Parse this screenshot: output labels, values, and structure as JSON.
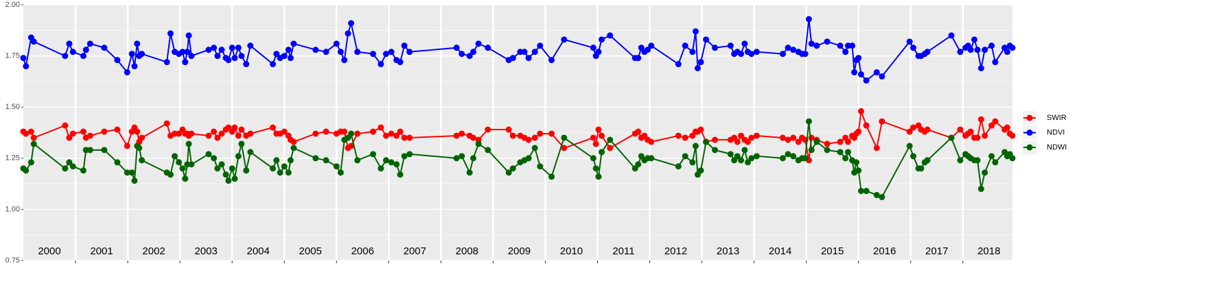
{
  "chart_data": {
    "type": "line",
    "x": [
      2000,
      2000.05,
      2000.15,
      2000.2,
      2000.8,
      2000.88,
      2000.95,
      2001.15,
      2001.2,
      2001.28,
      2001.55,
      2001.8,
      2001.99,
      2002.08,
      2002.13,
      2002.18,
      2002.22,
      2002.27,
      2002.75,
      2002.82,
      2002.9,
      2002.98,
      2003.05,
      2003.1,
      2003.14,
      2003.17,
      2003.22,
      2003.55,
      2003.65,
      2003.72,
      2003.8,
      2003.88,
      2003.93,
      2004,
      2004.05,
      2004.12,
      2004.18,
      2004.27,
      2004.35,
      2004.78,
      2004.85,
      2004.92,
      2005,
      2005.08,
      2005.12,
      2005.18,
      2005.6,
      2005.8,
      2006,
      2006.08,
      2006.15,
      2006.22,
      2006.28,
      2006.4,
      2006.7,
      2006.85,
      2006.95,
      2007.05,
      2007.15,
      2007.22,
      2007.3,
      2007.4,
      2008.3,
      2008.4,
      2008.55,
      2008.62,
      2008.72,
      2008.9,
      2009.3,
      2009.38,
      2009.52,
      2009.6,
      2009.68,
      2009.8,
      2009.9,
      2010.12,
      2010.36,
      2010.92,
      2010.97,
      2011.02,
      2011.08,
      2011.24,
      2011.72,
      2011.78,
      2011.84,
      2011.9,
      2011.96,
      2012.03,
      2012.55,
      2012.68,
      2012.82,
      2012.88,
      2012.92,
      2012.98,
      2013.08,
      2013.25,
      2013.55,
      2013.62,
      2013.68,
      2013.75,
      2013.82,
      2013.88,
      2013.95,
      2014.05,
      2014.55,
      2014.65,
      2014.75,
      2014.85,
      2014.92,
      2014.98,
      2015.05,
      2015.1,
      2015.2,
      2015.4,
      2015.65,
      2015.75,
      2015.8,
      2015.88,
      2015.92,
      2015.96,
      2016,
      2016.05,
      2016.15,
      2016.35,
      2016.45,
      2016.98,
      2017.05,
      2017.15,
      2017.2,
      2017.27,
      2017.32,
      2017.78,
      2017.95,
      2018.05,
      2018.1,
      2018.15,
      2018.22,
      2018.28,
      2018.35,
      2018.42,
      2018.55,
      2018.62,
      2018.8,
      2018.85,
      2018.9,
      2018.95
    ],
    "series": [
      {
        "name": "SWIR",
        "color": "#ff0000",
        "values": [
          1.38,
          1.37,
          1.38,
          1.35,
          1.41,
          1.35,
          1.37,
          1.38,
          1.35,
          1.36,
          1.38,
          1.39,
          1.31,
          1.38,
          1.4,
          1.38,
          1.33,
          1.35,
          1.42,
          1.36,
          1.37,
          1.37,
          1.39,
          1.37,
          1.37,
          1.36,
          1.37,
          1.36,
          1.38,
          1.35,
          1.37,
          1.39,
          1.4,
          1.38,
          1.4,
          1.36,
          1.39,
          1.36,
          1.37,
          1.4,
          1.37,
          1.37,
          1.38,
          1.36,
          1.34,
          1.33,
          1.37,
          1.38,
          1.37,
          1.38,
          1.38,
          1.3,
          1.31,
          1.37,
          1.38,
          1.4,
          1.36,
          1.37,
          1.36,
          1.38,
          1.35,
          1.35,
          1.36,
          1.37,
          1.36,
          1.35,
          1.34,
          1.39,
          1.39,
          1.36,
          1.36,
          1.35,
          1.34,
          1.35,
          1.37,
          1.37,
          1.3,
          1.35,
          1.32,
          1.39,
          1.36,
          1.3,
          1.37,
          1.38,
          1.35,
          1.36,
          1.34,
          1.33,
          1.36,
          1.35,
          1.36,
          1.38,
          1.38,
          1.39,
          1.33,
          1.34,
          1.34,
          1.35,
          1.33,
          1.36,
          1.34,
          1.33,
          1.35,
          1.36,
          1.35,
          1.34,
          1.35,
          1.33,
          1.35,
          1.34,
          1.24,
          1.35,
          1.34,
          1.32,
          1.33,
          1.35,
          1.33,
          1.36,
          1.35,
          1.37,
          1.38,
          1.48,
          1.41,
          1.3,
          1.43,
          1.38,
          1.4,
          1.41,
          1.39,
          1.38,
          1.39,
          1.35,
          1.39,
          1.36,
          1.37,
          1.38,
          1.35,
          1.35,
          1.44,
          1.36,
          1.41,
          1.43,
          1.39,
          1.4,
          1.37,
          1.36
        ]
      },
      {
        "name": "NDVI",
        "color": "#0000ff",
        "values": [
          1.74,
          1.7,
          1.84,
          1.82,
          1.75,
          1.81,
          1.77,
          1.75,
          1.78,
          1.81,
          1.79,
          1.73,
          1.67,
          1.76,
          1.7,
          1.81,
          1.75,
          1.76,
          1.72,
          1.86,
          1.77,
          1.76,
          1.77,
          1.72,
          1.77,
          1.85,
          1.75,
          1.78,
          1.79,
          1.75,
          1.78,
          1.74,
          1.73,
          1.79,
          1.74,
          1.79,
          1.75,
          1.71,
          1.8,
          1.71,
          1.76,
          1.74,
          1.75,
          1.78,
          1.74,
          1.81,
          1.78,
          1.77,
          1.81,
          1.77,
          1.73,
          1.86,
          1.91,
          1.77,
          1.76,
          1.71,
          1.76,
          1.77,
          1.73,
          1.72,
          1.8,
          1.77,
          1.79,
          1.76,
          1.75,
          1.77,
          1.81,
          1.79,
          1.73,
          1.74,
          1.77,
          1.77,
          1.74,
          1.77,
          1.8,
          1.73,
          1.83,
          1.79,
          1.75,
          1.77,
          1.83,
          1.85,
          1.74,
          1.74,
          1.79,
          1.77,
          1.78,
          1.8,
          1.71,
          1.8,
          1.77,
          1.87,
          1.69,
          1.72,
          1.83,
          1.79,
          1.8,
          1.76,
          1.77,
          1.76,
          1.81,
          1.77,
          1.76,
          1.77,
          1.76,
          1.79,
          1.78,
          1.77,
          1.76,
          1.76,
          1.93,
          1.81,
          1.8,
          1.82,
          1.8,
          1.77,
          1.8,
          1.8,
          1.67,
          1.73,
          1.74,
          1.66,
          1.63,
          1.67,
          1.65,
          1.82,
          1.79,
          1.75,
          1.75,
          1.76,
          1.77,
          1.85,
          1.77,
          1.79,
          1.8,
          1.78,
          1.83,
          1.78,
          1.69,
          1.78,
          1.8,
          1.72,
          1.79,
          1.77,
          1.8,
          1.79
        ]
      },
      {
        "name": "NDWI",
        "color": "#006400",
        "values": [
          1.2,
          1.19,
          1.23,
          1.32,
          1.2,
          1.23,
          1.21,
          1.19,
          1.29,
          1.29,
          1.29,
          1.23,
          1.18,
          1.18,
          1.14,
          1.31,
          1.3,
          1.24,
          1.18,
          1.17,
          1.26,
          1.23,
          1.2,
          1.15,
          1.22,
          1.32,
          1.22,
          1.27,
          1.25,
          1.2,
          1.22,
          1.17,
          1.14,
          1.2,
          1.15,
          1.26,
          1.32,
          1.19,
          1.28,
          1.2,
          1.24,
          1.18,
          1.21,
          1.18,
          1.24,
          1.3,
          1.25,
          1.24,
          1.21,
          1.18,
          1.34,
          1.35,
          1.37,
          1.24,
          1.27,
          1.2,
          1.24,
          1.23,
          1.22,
          1.17,
          1.26,
          1.27,
          1.25,
          1.26,
          1.18,
          1.25,
          1.32,
          1.29,
          1.18,
          1.2,
          1.23,
          1.24,
          1.25,
          1.3,
          1.21,
          1.16,
          1.35,
          1.25,
          1.2,
          1.16,
          1.28,
          1.34,
          1.2,
          1.22,
          1.26,
          1.24,
          1.25,
          1.25,
          1.21,
          1.26,
          1.23,
          1.31,
          1.17,
          1.19,
          1.33,
          1.29,
          1.27,
          1.24,
          1.26,
          1.24,
          1.29,
          1.23,
          1.25,
          1.26,
          1.25,
          1.27,
          1.26,
          1.24,
          1.25,
          1.25,
          1.43,
          1.29,
          1.33,
          1.29,
          1.28,
          1.25,
          1.28,
          1.24,
          1.18,
          1.23,
          1.19,
          1.09,
          1.09,
          1.07,
          1.06,
          1.31,
          1.26,
          1.2,
          1.2,
          1.23,
          1.24,
          1.35,
          1.24,
          1.27,
          1.26,
          1.25,
          1.24,
          1.24,
          1.1,
          1.18,
          1.26,
          1.23,
          1.28,
          1.26,
          1.27,
          1.25
        ]
      }
    ],
    "xlim": [
      2000,
      2018.95
    ],
    "xticks": [
      2001,
      2002,
      2003,
      2004,
      2005,
      2006,
      2007,
      2008,
      2009,
      2010,
      2011,
      2012,
      2013,
      2014,
      2015,
      2016,
      2017,
      2018
    ],
    "year_labels": [
      {
        "value": 2000.5,
        "label": "2000"
      },
      {
        "value": 2001.5,
        "label": "2001"
      },
      {
        "value": 2002.5,
        "label": "2002"
      },
      {
        "value": 2003.5,
        "label": "2003"
      },
      {
        "value": 2004.5,
        "label": "2004"
      },
      {
        "value": 2005.5,
        "label": "2005"
      },
      {
        "value": 2006.5,
        "label": "2006"
      },
      {
        "value": 2007.5,
        "label": "2007"
      },
      {
        "value": 2008.5,
        "label": "2008"
      },
      {
        "value": 2009.5,
        "label": "2009"
      },
      {
        "value": 2010.5,
        "label": "2010"
      },
      {
        "value": 2011.5,
        "label": "2011"
      },
      {
        "value": 2012.5,
        "label": "2012"
      },
      {
        "value": 2013.5,
        "label": "2013"
      },
      {
        "value": 2014.5,
        "label": "2014"
      },
      {
        "value": 2015.5,
        "label": "2015"
      },
      {
        "value": 2016.5,
        "label": "2016"
      },
      {
        "value": 2017.5,
        "label": "2017"
      },
      {
        "value": 2018.5,
        "label": "2018"
      }
    ],
    "ylim": [
      0.75,
      2.0
    ],
    "yticks": [
      {
        "value": 0.75,
        "label": "0.75"
      },
      {
        "value": 1.0,
        "label": "1.00"
      },
      {
        "value": 1.25,
        "label": "1.25"
      },
      {
        "value": 1.5,
        "label": "1.50"
      },
      {
        "value": 1.75,
        "label": "1.75"
      },
      {
        "value": 2.0,
        "label": "2.00"
      }
    ],
    "grid": true,
    "legend": "right"
  }
}
